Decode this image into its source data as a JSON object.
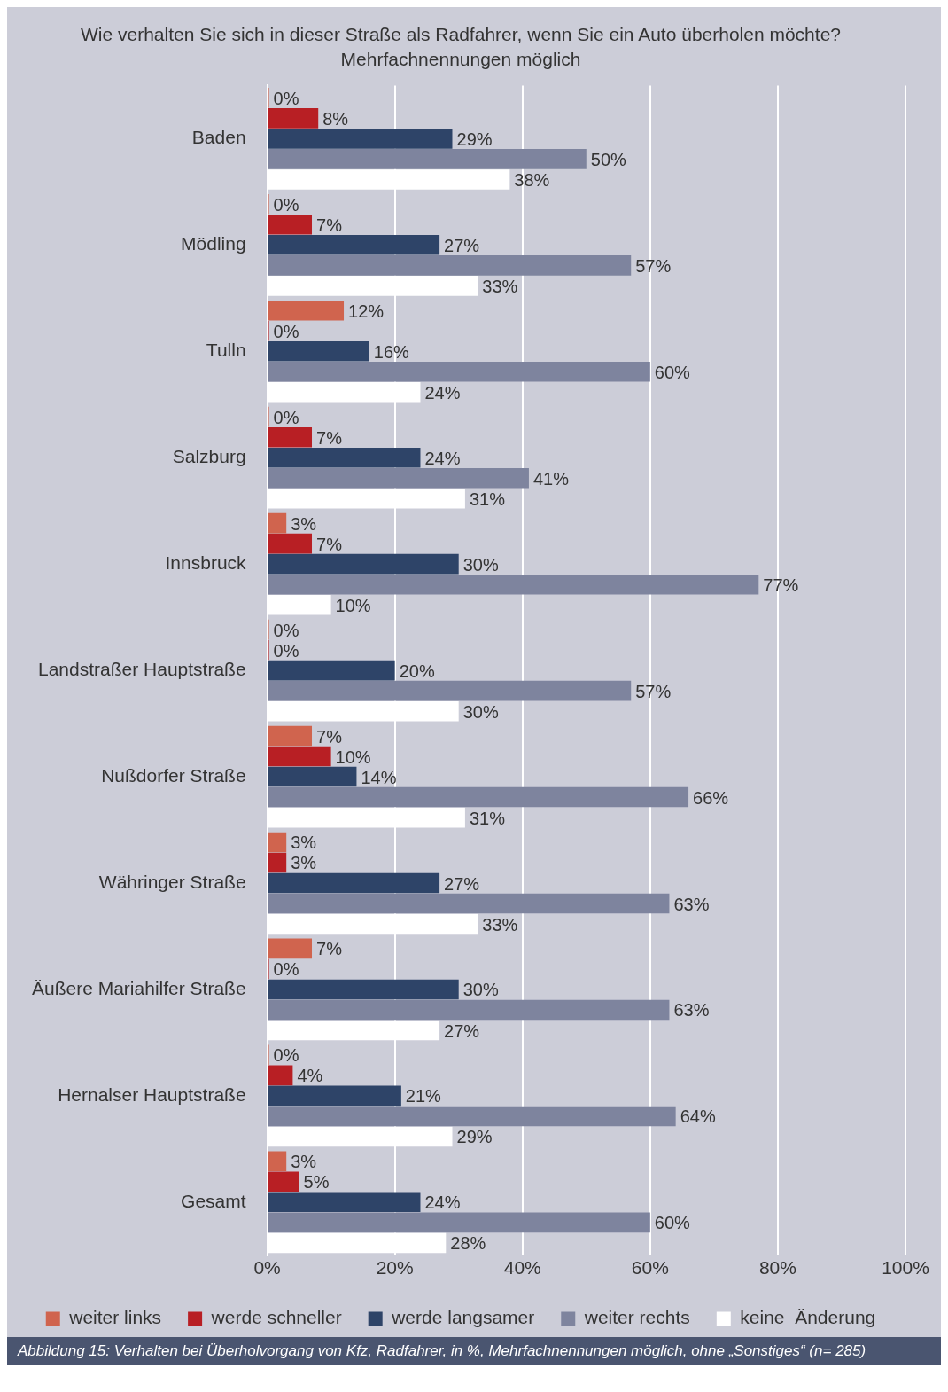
{
  "chart_data": {
    "type": "bar",
    "orientation": "horizontal",
    "title": "Wie verhalten Sie sich in dieser Straße als Radfahrer, wenn Sie ein Auto überholen möchte?",
    "subtitle": "Mehrfachnennungen möglich",
    "categories": [
      "Baden",
      "Mödling",
      "Tulln",
      "Salzburg",
      "Innsbruck",
      "Landstraßer Hauptstraße",
      "Nußdorfer Straße",
      "Währinger Straße",
      "Äußere Mariahilfer Straße",
      "Hernalser Hauptstraße",
      "Gesamt"
    ],
    "series": [
      {
        "name": "weiter links",
        "color": "#d0644e",
        "values": [
          0,
          0,
          12,
          0,
          3,
          0,
          7,
          3,
          7,
          0,
          3
        ],
        "value_labels": [
          "0%",
          "0%",
          "12%",
          "0%",
          "3%",
          "0%",
          "7%",
          "3%",
          "7%",
          "0%",
          "3%"
        ]
      },
      {
        "name": "werde schneller",
        "color": "#b81f24",
        "values": [
          8,
          7,
          0,
          7,
          7,
          0,
          10,
          3,
          0,
          4,
          5
        ],
        "value_labels": [
          "8%",
          "7%",
          "0%",
          "7%",
          "7%",
          "0%",
          "10%",
          "3%",
          "0%",
          "4%",
          "5%"
        ]
      },
      {
        "name": "werde langsamer",
        "color": "#2e4468",
        "values": [
          29,
          27,
          16,
          24,
          30,
          20,
          14,
          27,
          30,
          21,
          24
        ],
        "value_labels": [
          "29%",
          "27%",
          "16%",
          "24%",
          "30%",
          "20%",
          "14%",
          "27%",
          "30%",
          "21%",
          "24%"
        ]
      },
      {
        "name": "weiter rechts",
        "color": "#7e849e",
        "values": [
          50,
          57,
          60,
          41,
          77,
          57,
          66,
          63,
          63,
          64,
          60
        ],
        "value_labels": [
          "50%",
          "57%",
          "60%",
          "41%",
          "77%",
          "57%",
          "66%",
          "63%",
          "63%",
          "64%",
          "60%"
        ]
      },
      {
        "name": "keine  Änderung",
        "color": "#ffffff",
        "values": [
          38,
          33,
          24,
          31,
          10,
          30,
          31,
          33,
          27,
          29,
          28
        ],
        "value_labels": [
          "38%",
          "33%",
          "24%",
          "31%",
          "10%",
          "30%",
          "31%",
          "33%",
          "27%",
          "29%",
          "28%"
        ]
      }
    ],
    "xlim": [
      0,
      100
    ],
    "xticks": [
      {
        "value": 0,
        "label": "0%"
      },
      {
        "value": 20,
        "label": "20%"
      },
      {
        "value": 40,
        "label": "40%"
      },
      {
        "value": 60,
        "label": "60%"
      },
      {
        "value": 80,
        "label": "80%"
      },
      {
        "value": 100,
        "label": "100%"
      }
    ],
    "grid": "x",
    "legend": "bottom",
    "annotations": [
      "Abbildung 15: Verhalten bei Überholvorgang von Kfz, Radfahrer, in %, Mehrfachnennungen möglich, ohne „Sonstiges“ (n= 285)"
    ]
  }
}
